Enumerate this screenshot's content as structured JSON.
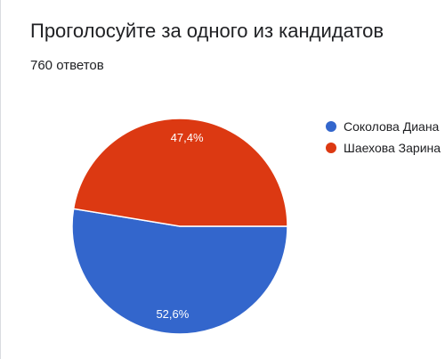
{
  "title": "Проголосуйте за одного из кандидатов",
  "responses": "760 ответов",
  "chart_data": {
    "type": "pie",
    "legend_position": "right",
    "slices": [
      {
        "name": "Соколова Диана",
        "value": 52.6,
        "label": "52,6%",
        "color": "#3366cc"
      },
      {
        "name": "Шаехова Зарина",
        "value": 47.4,
        "label": "47,4%",
        "color": "#dc3912"
      }
    ]
  }
}
